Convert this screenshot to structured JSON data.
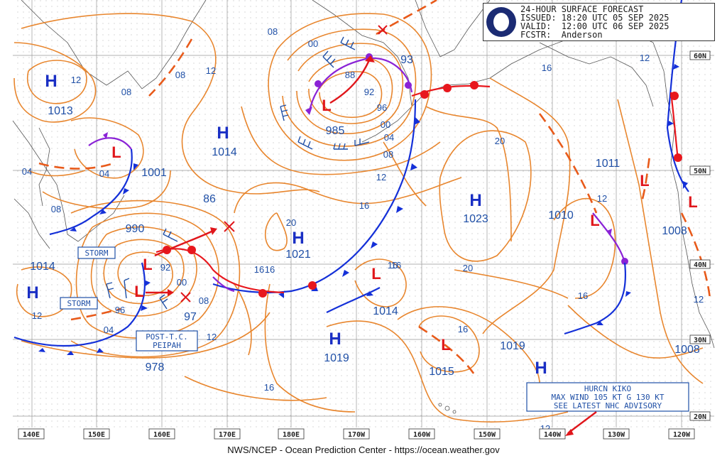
{
  "header": {
    "title": "24-HOUR SURFACE FORECAST",
    "issued": "ISSUED: 18:20 UTC 05 SEP 2025",
    "valid": "VALID:  12:00 UTC 06 SEP 2025",
    "forecaster": "FCSTR:  Anderson",
    "logo": "noaa-logo"
  },
  "footer": "NWS/NCEP - Ocean Prediction Center - https://ocean.weather.gov",
  "axes": {
    "longitudes": [
      "140E",
      "150E",
      "160E",
      "170E",
      "180E",
      "170W",
      "160W",
      "150W",
      "140W",
      "130W",
      "120W"
    ],
    "latitudes": [
      "60N",
      "50N",
      "40N",
      "30N",
      "20N"
    ]
  },
  "highs": [
    {
      "id": "h1",
      "label": "H",
      "pressure": "1013"
    },
    {
      "id": "h2",
      "label": "H",
      "pressure": "1014"
    },
    {
      "id": "h3",
      "label": "H",
      "pressure": "1021"
    },
    {
      "id": "h4",
      "label": "H",
      "pressure": "1023"
    },
    {
      "id": "h5",
      "label": "H",
      "pressure": "1014"
    },
    {
      "id": "h6",
      "label": "H",
      "pressure": "1019"
    },
    {
      "id": "h7",
      "label": "H",
      "pressure": ""
    }
  ],
  "lows": [
    {
      "id": "l1",
      "label": "L",
      "pressure": "985"
    },
    {
      "id": "l2",
      "label": "L",
      "pressure": "1001"
    },
    {
      "id": "l3",
      "label": "L",
      "pressure": "990"
    },
    {
      "id": "l4",
      "label": "L",
      "pressure": "978"
    },
    {
      "id": "l5",
      "label": "L",
      "pressure": "1014"
    },
    {
      "id": "l6",
      "label": "L",
      "pressure": "1015"
    },
    {
      "id": "l7",
      "label": "L",
      "pressure": "1010"
    },
    {
      "id": "l8",
      "label": "L",
      "pressure": "1011"
    },
    {
      "id": "l9",
      "label": "L",
      "pressure": "1008"
    }
  ],
  "other_pressures": [
    "93",
    "86",
    "1019",
    "1008",
    "97"
  ],
  "isobar_labels": [
    "12",
    "08",
    "12",
    "08",
    "04",
    "08",
    "00",
    "88",
    "92",
    "96",
    "00",
    "04",
    "08",
    "12",
    "16",
    "16",
    "20",
    "20",
    "16",
    "12",
    "16",
    "20",
    "12",
    "16",
    "16",
    "92",
    "96",
    "00",
    "04",
    "08",
    "12",
    "16",
    "04",
    "12",
    "08",
    "12",
    "12",
    "16",
    "16"
  ],
  "boxes": {
    "storm1": "STORM",
    "storm2": "STORM",
    "ptc": [
      "POST-T.C.",
      "PEIPAH"
    ],
    "kiko": [
      "HURCN KIKO",
      "MAX WIND 105 KT G 130 KT",
      "SEE LATEST NHC ADVISORY"
    ]
  },
  "colors": {
    "isobar": "#e8862e",
    "cold_front": "#1430d8",
    "warm_front": "#e8171d",
    "occluded_front": "#8a22d6",
    "trough": "#e85a1a",
    "high": "#1a2fc4",
    "low": "#e0161b",
    "label": "#1f4fa6"
  }
}
